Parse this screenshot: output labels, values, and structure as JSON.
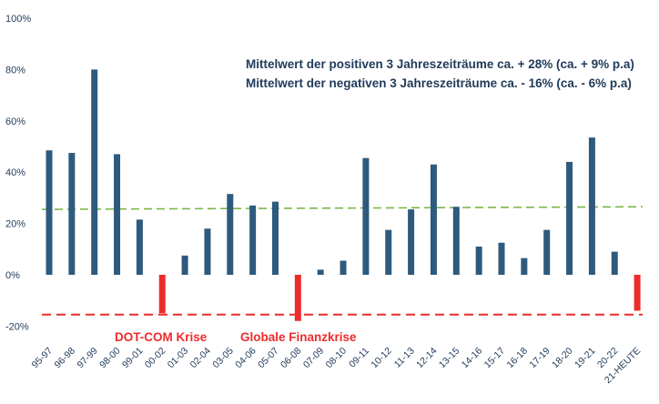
{
  "chart_data": {
    "type": "bar",
    "categories": [
      "95-97",
      "96-98",
      "97-99",
      "98-00",
      "99-01",
      "00-02",
      "01-03",
      "02-04",
      "03-05",
      "04-06",
      "05-07",
      "06-08",
      "07-09",
      "08-10",
      "09-11",
      "10-12",
      "11-13",
      "12-14",
      "13-15",
      "14-16",
      "15-17",
      "16-18",
      "17-19",
      "18-20",
      "19-21",
      "20-22",
      "21-HEUTE"
    ],
    "values": [
      48.5,
      47.5,
      80,
      47,
      21.5,
      -15,
      7.5,
      18,
      31.5,
      27,
      28.5,
      -18,
      2,
      5.5,
      45.5,
      17.5,
      25.5,
      43,
      26.5,
      11,
      12.5,
      6.5,
      17.5,
      44,
      53.5,
      9,
      -14
    ],
    "ylim": [
      -20,
      100
    ],
    "yticks": [
      -20,
      0,
      20,
      40,
      60,
      80,
      100
    ],
    "ytick_labels": [
      "-20%",
      "0%",
      "20%",
      "40%",
      "60%",
      "80%",
      "100%"
    ],
    "grid": false,
    "colors": {
      "positive": "#2e5a7e",
      "negative": "#ee2b2b",
      "mean_positive_line": "#7ab648",
      "mean_negative_line": "#ee2b2b"
    },
    "reference_lines": [
      {
        "y_start": 25.5,
        "y_end": 26.5,
        "style": "dashed",
        "color": "#7ab648"
      },
      {
        "y_start": -15.5,
        "y_end": -15.5,
        "style": "dashed",
        "color": "#ee2b2b"
      }
    ],
    "annotations": [
      "Mittelwert der positiven 3 Jahreszeiträume ca. + 28% (ca. + 9% p.a)",
      "Mittelwert der negativen 3 Jahreszeiträume ca. - 16% (ca. - 6% p.a)"
    ],
    "crisis_labels": [
      {
        "text": "DOT-COM Krise",
        "category": "00-02"
      },
      {
        "text": "Globale Finanzkrise",
        "category": "06-08"
      }
    ]
  }
}
